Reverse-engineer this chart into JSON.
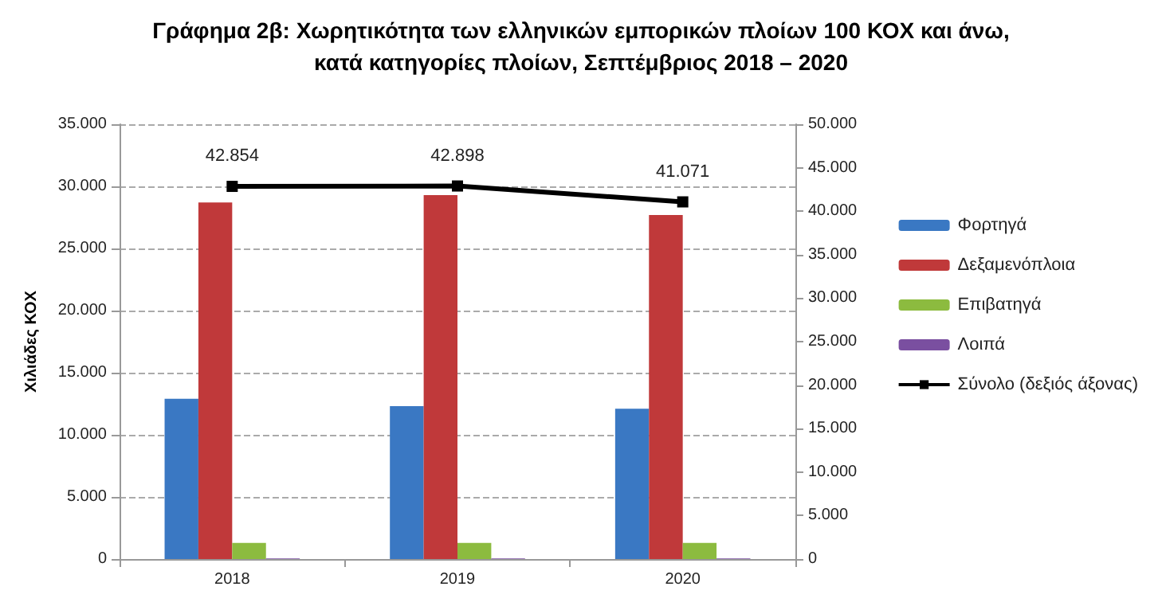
{
  "chart_data": {
    "type": "bar",
    "title": "Γράφημα 2β: Χωρητικότητα των ελληνικών εμπορικών πλοίων 100 ΚΟΧ και άνω,\nκατά κατηγορίες πλοίων, Σεπτέμβριος 2018 – 2020",
    "ylabel": "Χιλιάδες ΚΟΧ",
    "categories": [
      "2018",
      "2019",
      "2020"
    ],
    "series": [
      {
        "name": "Φορτηγά",
        "color": "#3a78c3",
        "values": [
          12900,
          12300,
          12100
        ]
      },
      {
        "name": "Δεξαμενόπλοια",
        "color": "#c0393a",
        "values": [
          28700,
          29300,
          27700
        ]
      },
      {
        "name": "Επιβατηγά",
        "color": "#8cbb3f",
        "values": [
          1300,
          1300,
          1300
        ]
      },
      {
        "name": "Λοιπά",
        "color": "#7a4fa0",
        "values": [
          50,
          50,
          50
        ]
      },
      {
        "name": "Σύνολο (δεξιός άξονας)",
        "type": "line",
        "axis": "y2",
        "color": "#000000",
        "marker": "square",
        "line_style": "solid",
        "values": [
          42854,
          42898,
          41071
        ],
        "value_labels": [
          "42.854",
          "42.898",
          "41.071"
        ]
      }
    ],
    "ylim": [
      0,
      35000
    ],
    "yticks": [
      {
        "value": 0,
        "label": "0"
      },
      {
        "value": 5000,
        "label": "5.000"
      },
      {
        "value": 10000,
        "label": "10.000"
      },
      {
        "value": 15000,
        "label": "15.000"
      },
      {
        "value": 20000,
        "label": "20.000"
      },
      {
        "value": 25000,
        "label": "25.000"
      },
      {
        "value": 30000,
        "label": "30.000"
      },
      {
        "value": 35000,
        "label": "35.000"
      }
    ],
    "y2lim": [
      0,
      50000
    ],
    "y2ticks": [
      {
        "value": 0,
        "label": "0"
      },
      {
        "value": 5000,
        "label": "5.000"
      },
      {
        "value": 10000,
        "label": "10.000"
      },
      {
        "value": 15000,
        "label": "15.000"
      },
      {
        "value": 20000,
        "label": "20.000"
      },
      {
        "value": 25000,
        "label": "25.000"
      },
      {
        "value": 30000,
        "label": "30.000"
      },
      {
        "value": 35000,
        "label": "35.000"
      },
      {
        "value": 40000,
        "label": "40.000"
      },
      {
        "value": 45000,
        "label": "45.000"
      },
      {
        "value": 50000,
        "label": "50.000"
      }
    ],
    "grid": "y",
    "legend": "right"
  }
}
